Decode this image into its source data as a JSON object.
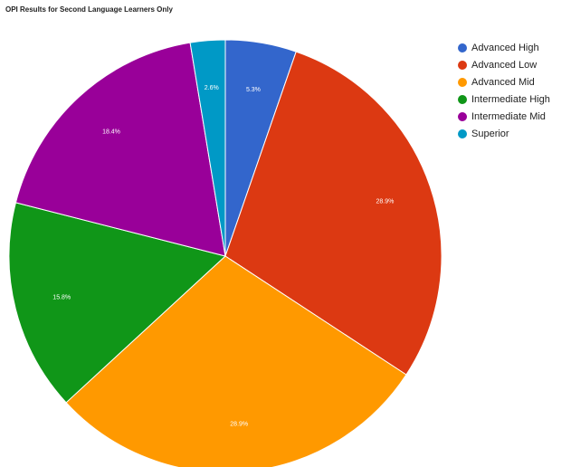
{
  "chart_data": {
    "type": "pie",
    "title": "OPI Results for Second Language Learners Only",
    "slices": [
      {
        "name": "Advanced High",
        "value": 5.3,
        "label": "5.3%",
        "color": "#3366cc"
      },
      {
        "name": "Advanced Low",
        "value": 28.9,
        "label": "28.9%",
        "color": "#dc3912"
      },
      {
        "name": "Advanced Mid",
        "value": 28.9,
        "label": "28.9%",
        "color": "#ff9900"
      },
      {
        "name": "Intermediate High",
        "value": 15.8,
        "label": "15.8%",
        "color": "#109618"
      },
      {
        "name": "Intermediate Mid",
        "value": 18.4,
        "label": "18.4%",
        "color": "#990099"
      },
      {
        "name": "Superior",
        "value": 2.6,
        "label": "2.6%",
        "color": "#0099c6"
      }
    ],
    "legend_position": "right"
  }
}
